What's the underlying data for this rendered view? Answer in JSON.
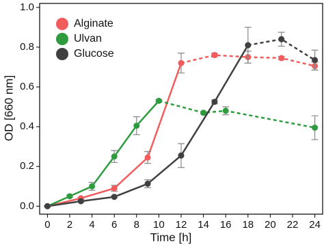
{
  "chart_data": {
    "type": "line",
    "x_label": "Time [h]",
    "y_label": "OD [660 nm]",
    "xlim": [
      -0.7,
      24.7
    ],
    "ylim": [
      -0.04,
      1.02
    ],
    "xticks": [
      0,
      2,
      4,
      6,
      8,
      10,
      12,
      14,
      16,
      18,
      20,
      22,
      24
    ],
    "yticks": [
      {
        "value": 0,
        "label": "0.0"
      },
      0.2,
      0.4,
      0.6,
      0.8,
      {
        "value": 1,
        "label": "1.0"
      }
    ],
    "legend": "upper left",
    "series": [
      {
        "name": "Alginate",
        "color": "#f25c5c",
        "solid_until": 12,
        "x": [
          0,
          3,
          6,
          9,
          12,
          15,
          18,
          21,
          24
        ],
        "values": [
          0,
          0.04,
          0.09,
          0.245,
          0.72,
          0.76,
          0.75,
          0.745,
          0.705
        ],
        "errors": [
          0.003,
          0.005,
          0.015,
          0.03,
          0.05,
          0.01,
          0.03,
          0.008,
          0.02
        ]
      },
      {
        "name": "Ulvan",
        "color": "#2f9b3f",
        "solid_until": 10,
        "x": [
          0,
          2,
          4,
          6,
          8,
          10,
          14,
          16,
          24
        ],
        "values": [
          0,
          0.05,
          0.1,
          0.25,
          0.405,
          0.53,
          0.47,
          0.48,
          0.395
        ],
        "errors": [
          0.003,
          0.005,
          0.02,
          0.03,
          0.045,
          0.006,
          0.006,
          0.02,
          0.06
        ]
      },
      {
        "name": "Glucose",
        "color": "#404040",
        "solid_until": 18,
        "x": [
          0,
          3,
          6,
          9,
          12,
          15,
          18,
          21,
          24
        ],
        "values": [
          0,
          0.025,
          0.047,
          0.113,
          0.255,
          0.525,
          0.81,
          0.84,
          0.735
        ],
        "errors": [
          0.003,
          0.005,
          0.005,
          0.02,
          0.06,
          0.01,
          0.09,
          0.035,
          0.05
        ]
      }
    ]
  }
}
